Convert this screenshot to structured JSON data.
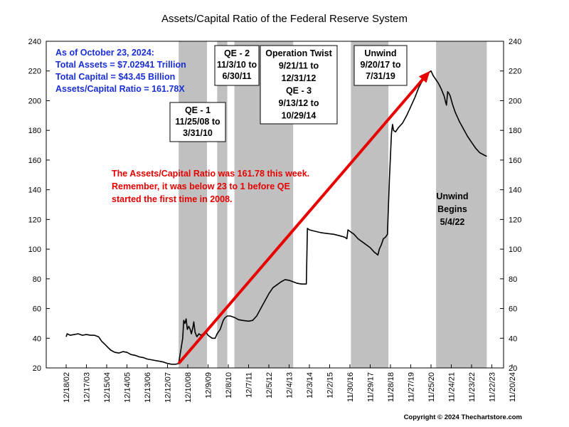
{
  "chart_data": {
    "type": "line",
    "title": "Assets/Capital Ratio of the Federal Reserve System",
    "ylim": [
      20,
      240
    ],
    "y_ticks": [
      20,
      40,
      60,
      80,
      100,
      120,
      140,
      160,
      180,
      200,
      220,
      240
    ],
    "x_ticks": [
      "12/18/02",
      "12/17/03",
      "12/15/04",
      "12/14/05",
      "12/13/06",
      "12/12/07",
      "12/10/08",
      "12/9/09",
      "12/8/10",
      "12/7/11",
      "12/5/12",
      "12/4/13",
      "12/3/14",
      "12/2/15",
      "11/30/16",
      "11/29/17",
      "11/28/18",
      "11/27/19",
      "11/25/20",
      "11/24/21",
      "11/23/22",
      "11/22/23",
      "11/20/24"
    ],
    "grid": false,
    "series": [
      {
        "values": [
          [
            0.0,
            41
          ],
          [
            0.05,
            43
          ],
          [
            0.2,
            42
          ],
          [
            0.4,
            42.5
          ],
          [
            0.6,
            43
          ],
          [
            0.8,
            42
          ],
          [
            1.0,
            42.5
          ],
          [
            1.2,
            42
          ],
          [
            1.4,
            42
          ],
          [
            1.6,
            41
          ],
          [
            1.75,
            38
          ],
          [
            1.9,
            36
          ],
          [
            2.05,
            34
          ],
          [
            2.2,
            32
          ],
          [
            2.4,
            30.5
          ],
          [
            2.6,
            30
          ],
          [
            2.8,
            31
          ],
          [
            3.0,
            30.5
          ],
          [
            3.2,
            29
          ],
          [
            3.4,
            28.5
          ],
          [
            3.6,
            27.5
          ],
          [
            3.8,
            27
          ],
          [
            4.0,
            26
          ],
          [
            4.2,
            25.5
          ],
          [
            4.4,
            25
          ],
          [
            4.6,
            24.5
          ],
          [
            4.8,
            24
          ],
          [
            5.0,
            23
          ],
          [
            5.2,
            22.5
          ],
          [
            5.4,
            22.5
          ],
          [
            5.55,
            23
          ],
          [
            5.75,
            40
          ],
          [
            5.8,
            52
          ],
          [
            5.86,
            50
          ],
          [
            5.92,
            53
          ],
          [
            5.98,
            46
          ],
          [
            6.05,
            48
          ],
          [
            6.12,
            46
          ],
          [
            6.18,
            43
          ],
          [
            6.25,
            47
          ],
          [
            6.3,
            51
          ],
          [
            6.36,
            44
          ],
          [
            6.45,
            41
          ],
          [
            6.55,
            43
          ],
          [
            6.65,
            42
          ],
          [
            6.75,
            43
          ],
          [
            6.9,
            44
          ],
          [
            7.0,
            42
          ],
          [
            7.2,
            40
          ],
          [
            7.35,
            40
          ],
          [
            7.45,
            43
          ],
          [
            7.6,
            46
          ],
          [
            7.75,
            52
          ],
          [
            7.85,
            54
          ],
          [
            7.95,
            55
          ],
          [
            8.1,
            55
          ],
          [
            8.3,
            54
          ],
          [
            8.5,
            52.5
          ],
          [
            8.7,
            52
          ],
          [
            9.0,
            51.5
          ],
          [
            9.2,
            52
          ],
          [
            9.4,
            55
          ],
          [
            9.6,
            60
          ],
          [
            9.8,
            65
          ],
          [
            10.0,
            70
          ],
          [
            10.2,
            74
          ],
          [
            10.4,
            76
          ],
          [
            10.6,
            78
          ],
          [
            10.8,
            79.5
          ],
          [
            11.0,
            79
          ],
          [
            11.2,
            78
          ],
          [
            11.4,
            77
          ],
          [
            11.6,
            76.5
          ],
          [
            11.85,
            76.5
          ],
          [
            11.9,
            114
          ],
          [
            12.0,
            113
          ],
          [
            12.3,
            112
          ],
          [
            12.6,
            111
          ],
          [
            12.9,
            110.5
          ],
          [
            13.2,
            110
          ],
          [
            13.5,
            109
          ],
          [
            13.75,
            108
          ],
          [
            13.85,
            107
          ],
          [
            13.9,
            113
          ],
          [
            14.0,
            112
          ],
          [
            14.2,
            110
          ],
          [
            14.4,
            107
          ],
          [
            14.7,
            104
          ],
          [
            15.0,
            101
          ],
          [
            15.2,
            98
          ],
          [
            15.3,
            97
          ],
          [
            15.38,
            96
          ],
          [
            15.45,
            100
          ],
          [
            15.55,
            103
          ],
          [
            15.65,
            107
          ],
          [
            15.75,
            108
          ],
          [
            15.85,
            110
          ],
          [
            15.95,
            148
          ],
          [
            16.05,
            178
          ],
          [
            16.1,
            184
          ],
          [
            16.15,
            180
          ],
          [
            16.25,
            179
          ],
          [
            16.4,
            182
          ],
          [
            16.6,
            185
          ],
          [
            16.8,
            190
          ],
          [
            17.0,
            196
          ],
          [
            17.2,
            202
          ],
          [
            17.4,
            209
          ],
          [
            17.6,
            214
          ],
          [
            17.8,
            218
          ],
          [
            17.9,
            219
          ],
          [
            18.0,
            220
          ],
          [
            18.1,
            217
          ],
          [
            18.2,
            215
          ],
          [
            18.35,
            212
          ],
          [
            18.5,
            208
          ],
          [
            18.65,
            203
          ],
          [
            18.72,
            199
          ],
          [
            18.76,
            197
          ],
          [
            18.82,
            206
          ],
          [
            18.88,
            205
          ],
          [
            18.95,
            203
          ],
          [
            19.05,
            198
          ],
          [
            19.2,
            192
          ],
          [
            19.4,
            186
          ],
          [
            19.6,
            181
          ],
          [
            19.8,
            176
          ],
          [
            20.0,
            172
          ],
          [
            20.2,
            168
          ],
          [
            20.4,
            165
          ],
          [
            20.6,
            163.5
          ],
          [
            20.75,
            162.5
          ]
        ]
      }
    ],
    "shaded_periods": [
      {
        "start": 5.55,
        "end": 6.95
      },
      {
        "start": 7.45,
        "end": 7.95
      },
      {
        "start": 8.3,
        "end": 11.2
      },
      {
        "start": 14.05,
        "end": 15.9
      },
      {
        "start": 18.25,
        "end": 20.75
      }
    ],
    "trend_arrow": {
      "from": [
        5.55,
        23
      ],
      "to": [
        17.95,
        220
      ],
      "color": "#e60000"
    },
    "annotations": [
      {
        "id": "info",
        "lines": [
          "As of October 23, 2024:",
          "Total Assets = $7.02941 Trillion",
          "Total Capital  = $43.45 Billion",
          "Assets/Capital Ratio = 161.78X"
        ]
      },
      {
        "id": "qe1",
        "lines": [
          "QE - 1",
          "11/25/08 to",
          "3/31/10"
        ]
      },
      {
        "id": "qe2",
        "lines": [
          "QE - 2",
          "11/3/10 to",
          "6/30/11"
        ]
      },
      {
        "id": "twist",
        "lines": [
          "Operation Twist",
          "9/21/11 to",
          "12/31/12",
          "QE - 3",
          "9/13/12 to",
          "10/29/14"
        ]
      },
      {
        "id": "unwind1",
        "lines": [
          "Unwind",
          "9/20/17 to",
          "7/31/19"
        ]
      },
      {
        "id": "unwind2",
        "lines": [
          "Unwind",
          "Begins",
          "5/4/22"
        ]
      },
      {
        "id": "note",
        "lines": [
          "The Assets/Capital Ratio was 161.78 this week.",
          "Remember, it was below 23 to 1 before QE",
          "started the first time in 2008."
        ]
      }
    ]
  },
  "footer": {
    "copyright": "Copyright © 2024 Thechartstore.com"
  },
  "colors": {
    "shade": "#c0c0c0",
    "line": "#000000",
    "arrow": "#e60000",
    "info": "#1a2fd6",
    "note": "#e60000"
  }
}
